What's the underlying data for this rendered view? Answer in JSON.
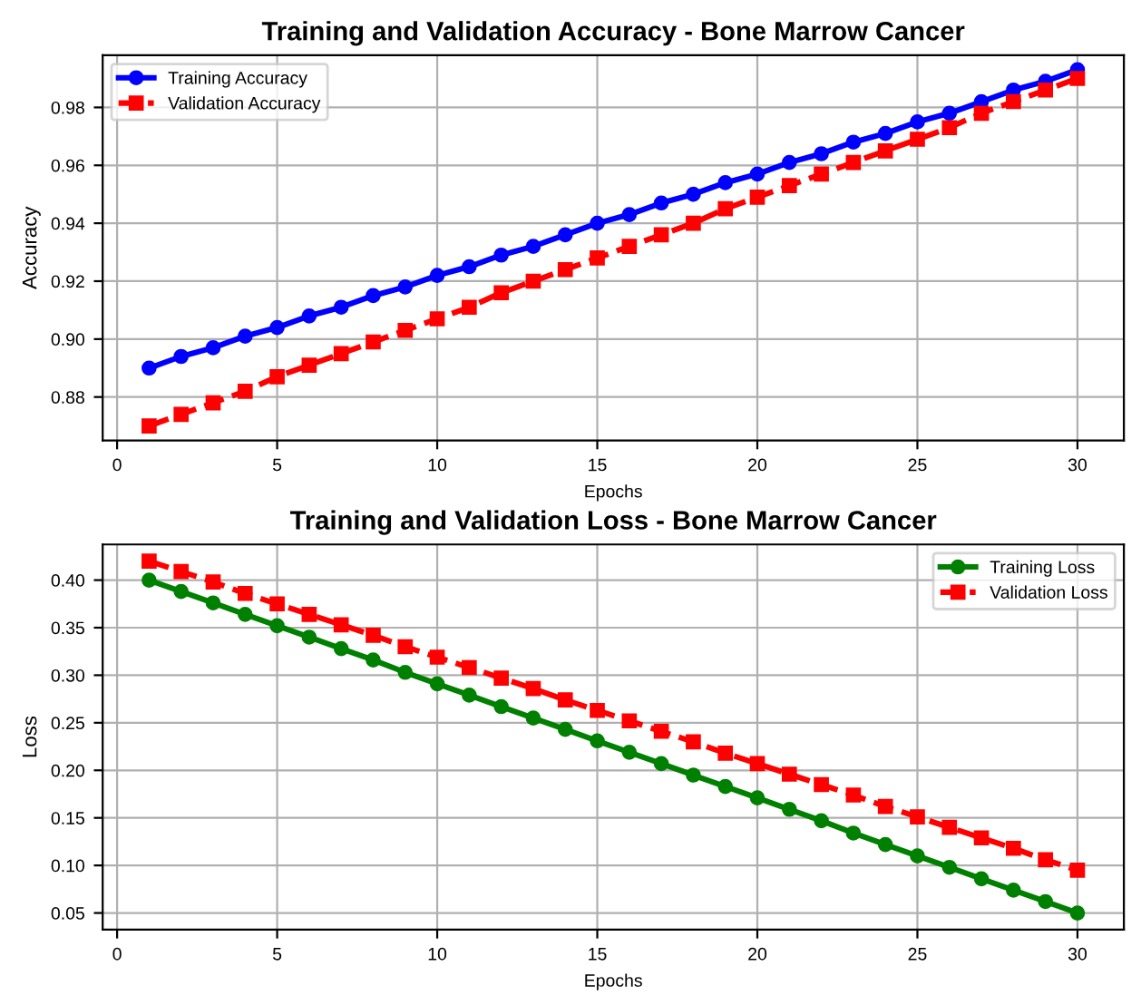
{
  "chart_data": [
    {
      "type": "line",
      "title": "Training and Validation Accuracy - Bone Marrow Cancer",
      "xlabel": "Epochs",
      "ylabel": "Accuracy",
      "x": [
        1,
        2,
        3,
        4,
        5,
        6,
        7,
        8,
        9,
        10,
        11,
        12,
        13,
        14,
        15,
        16,
        17,
        18,
        19,
        20,
        21,
        22,
        23,
        24,
        25,
        26,
        27,
        28,
        29,
        30
      ],
      "series": [
        {
          "name": "Training Accuracy",
          "color": "#0000ff",
          "marker": "circle",
          "line_style": "solid",
          "values": [
            0.89,
            0.894,
            0.897,
            0.901,
            0.904,
            0.908,
            0.911,
            0.915,
            0.918,
            0.922,
            0.925,
            0.929,
            0.932,
            0.936,
            0.94,
            0.943,
            0.947,
            0.95,
            0.954,
            0.957,
            0.961,
            0.964,
            0.968,
            0.971,
            0.975,
            0.978,
            0.982,
            0.986,
            0.989,
            0.993
          ]
        },
        {
          "name": "Validation Accuracy",
          "color": "#ff0000",
          "marker": "square",
          "line_style": "dashed",
          "values": [
            0.87,
            0.874,
            0.878,
            0.882,
            0.887,
            0.891,
            0.895,
            0.899,
            0.903,
            0.907,
            0.911,
            0.916,
            0.92,
            0.924,
            0.928,
            0.932,
            0.936,
            0.94,
            0.945,
            0.949,
            0.953,
            0.957,
            0.961,
            0.965,
            0.969,
            0.973,
            0.978,
            0.982,
            0.986,
            0.99
          ]
        }
      ],
      "xlim": [
        -0.45,
        31.45
      ],
      "xticks": [
        0,
        5,
        10,
        15,
        20,
        25,
        30
      ],
      "ylim": [
        0.865,
        0.998
      ],
      "yticks": [
        {
          "value": 0.88,
          "label": "0.88"
        },
        {
          "value": 0.9,
          "label": "0.90"
        },
        {
          "value": 0.92,
          "label": "0.92"
        },
        {
          "value": 0.94,
          "label": "0.94"
        },
        {
          "value": 0.96,
          "label": "0.96"
        },
        {
          "value": 0.98,
          "label": "0.98"
        }
      ],
      "grid": true,
      "legend": "top left"
    },
    {
      "type": "line",
      "title": "Training and Validation Loss - Bone Marrow Cancer",
      "xlabel": "Epochs",
      "ylabel": "Loss",
      "x": [
        1,
        2,
        3,
        4,
        5,
        6,
        7,
        8,
        9,
        10,
        11,
        12,
        13,
        14,
        15,
        16,
        17,
        18,
        19,
        20,
        21,
        22,
        23,
        24,
        25,
        26,
        27,
        28,
        29,
        30
      ],
      "series": [
        {
          "name": "Training Loss",
          "color": "#008000",
          "marker": "circle",
          "line_style": "solid",
          "values": [
            0.4,
            0.388,
            0.376,
            0.364,
            0.352,
            0.34,
            0.328,
            0.316,
            0.303,
            0.291,
            0.279,
            0.267,
            0.255,
            0.243,
            0.231,
            0.219,
            0.207,
            0.195,
            0.183,
            0.171,
            0.159,
            0.147,
            0.134,
            0.122,
            0.11,
            0.098,
            0.086,
            0.074,
            0.062,
            0.05
          ]
        },
        {
          "name": "Validation Loss",
          "color": "#ff0000",
          "marker": "square",
          "line_style": "dashed",
          "values": [
            0.42,
            0.409,
            0.398,
            0.386,
            0.375,
            0.364,
            0.353,
            0.342,
            0.33,
            0.319,
            0.308,
            0.297,
            0.286,
            0.274,
            0.263,
            0.252,
            0.241,
            0.23,
            0.218,
            0.207,
            0.196,
            0.185,
            0.174,
            0.162,
            0.151,
            0.14,
            0.129,
            0.118,
            0.106,
            0.095
          ]
        }
      ],
      "xlim": [
        -0.45,
        31.45
      ],
      "xticks": [
        0,
        5,
        10,
        15,
        20,
        25,
        30
      ],
      "ylim": [
        0.0325,
        0.4375
      ],
      "yticks": [
        {
          "value": 0.05,
          "label": "0.05"
        },
        {
          "value": 0.1,
          "label": "0.10"
        },
        {
          "value": 0.15,
          "label": "0.15"
        },
        {
          "value": 0.2,
          "label": "0.20"
        },
        {
          "value": 0.25,
          "label": "0.25"
        },
        {
          "value": 0.3,
          "label": "0.30"
        },
        {
          "value": 0.35,
          "label": "0.35"
        },
        {
          "value": 0.4,
          "label": "0.40"
        }
      ],
      "grid": true,
      "legend": "top right"
    }
  ]
}
